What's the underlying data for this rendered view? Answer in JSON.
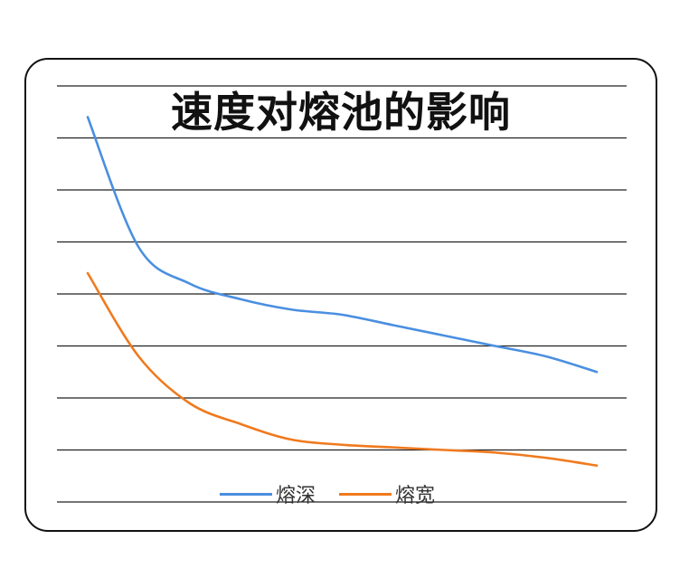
{
  "chart_data": {
    "type": "line",
    "title": "速度对熔池的影响",
    "xlabel": "",
    "ylabel": "",
    "x": [
      0,
      1,
      2,
      3,
      4,
      5,
      6,
      7,
      8,
      9,
      10
    ],
    "ylim": [
      0,
      8
    ],
    "grid": true,
    "legend_position": "bottom-center",
    "series": [
      {
        "name": "熔深",
        "color": "#4A8FE0",
        "values": [
          7.4,
          4.9,
          4.2,
          3.9,
          3.7,
          3.6,
          3.4,
          3.2,
          3.0,
          2.8,
          2.5
        ]
      },
      {
        "name": "熔宽",
        "color": "#F07A1E",
        "values": [
          4.4,
          2.8,
          1.9,
          1.5,
          1.2,
          1.1,
          1.05,
          1.0,
          0.95,
          0.85,
          0.7
        ]
      }
    ]
  }
}
